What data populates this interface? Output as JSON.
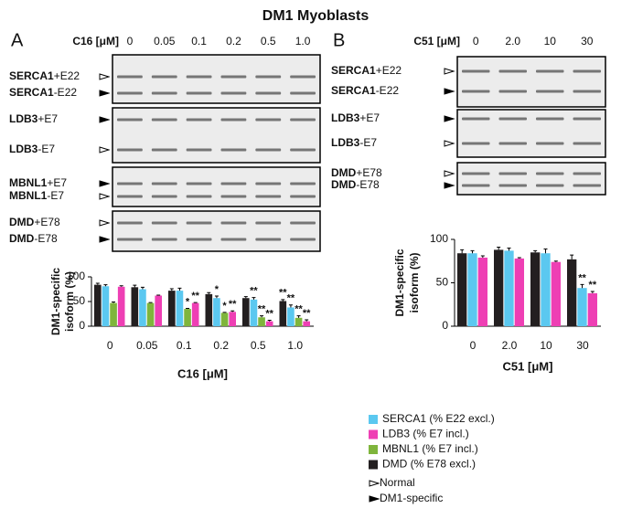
{
  "title": "DM1 Myoblasts",
  "gels": [
    {
      "label": "A",
      "condition": "C16 [μM]",
      "lanes": [
        "0",
        "0.05",
        "0.1",
        "0.2",
        "0.5",
        "1.0"
      ],
      "blocks": [
        [
          {
            "gene": "SERCA1",
            "exon": "+E22",
            "marker": "normal"
          },
          {
            "gene": "SERCA1",
            "exon": "-E22",
            "marker": "dm1"
          }
        ],
        [
          {
            "gene": "LDB3",
            "exon": "+E7",
            "marker": "dm1"
          },
          {
            "gene": "LDB3",
            "exon": "-E7",
            "marker": "normal"
          }
        ],
        [
          {
            "gene": "MBNL1",
            "exon": "+E7",
            "marker": "dm1"
          },
          {
            "gene": "MBNL1",
            "exon": "-E7",
            "marker": "normal"
          }
        ],
        [
          {
            "gene": "DMD",
            "exon": "+E78",
            "marker": "normal"
          },
          {
            "gene": "DMD",
            "exon": "-E78",
            "marker": "dm1"
          }
        ]
      ]
    },
    {
      "label": "B",
      "condition": "C51 [μM]",
      "lanes": [
        "0",
        "2.0",
        "10",
        "30"
      ],
      "blocks": [
        [
          {
            "gene": "SERCA1",
            "exon": "+E22",
            "marker": "normal"
          },
          {
            "gene": "SERCA1",
            "exon": "-E22",
            "marker": "dm1"
          }
        ],
        [
          {
            "gene": "LDB3",
            "exon": "+E7",
            "marker": "dm1"
          },
          {
            "gene": "LDB3",
            "exon": "-E7",
            "marker": "normal"
          }
        ],
        [
          {
            "gene": "DMD",
            "exon": "+E78",
            "marker": "normal"
          },
          {
            "gene": "DMD",
            "exon": "-E78",
            "marker": "dm1"
          }
        ]
      ]
    }
  ],
  "marker_key": [
    {
      "label": "Normal",
      "marker": "normal"
    },
    {
      "label": "DM1-specific",
      "marker": "dm1"
    }
  ],
  "chart_data": [
    {
      "type": "bar",
      "ylabel": [
        "DM1-specific",
        "isoform (%)"
      ],
      "xlabel": "C16 [μM]",
      "categories": [
        "0",
        "0.05",
        "0.1",
        "0.2",
        "0.5",
        "1.0"
      ],
      "ylim": [
        0,
        100
      ],
      "yticks": [
        0,
        50,
        100
      ],
      "grid": false,
      "series": [
        {
          "name": "SERCA1 (% E22 excl.)",
          "color": "#5bc8f0",
          "values": [
            81,
            75,
            72,
            57,
            54,
            38
          ],
          "errors": [
            3,
            4,
            5,
            4,
            4,
            5
          ],
          "stars": [
            null,
            null,
            null,
            "*",
            "**",
            "**"
          ]
        },
        {
          "name": "LDB3 (% E7 incl.)",
          "color": "#ee3fb4",
          "values": [
            80,
            62,
            47,
            29,
            10,
            10
          ],
          "errors": [
            2,
            1,
            1,
            2,
            2,
            3
          ],
          "stars": [
            null,
            null,
            "**",
            "**",
            "**",
            "**"
          ]
        },
        {
          "name": "MBNL1 (% E7 incl.)",
          "color": "#7fb53c",
          "values": [
            47,
            47,
            35,
            27,
            18,
            17
          ],
          "errors": [
            2,
            1,
            1,
            1,
            3,
            4
          ],
          "stars": [
            null,
            null,
            "*",
            "*",
            "**",
            "**"
          ]
        },
        {
          "name": "DMD (% E78 excl.)",
          "color": "#231f20",
          "values": [
            84,
            79,
            72,
            65,
            57,
            51
          ],
          "errors": [
            3,
            4,
            4,
            3,
            3,
            3
          ],
          "stars": [
            null,
            null,
            null,
            null,
            null,
            "**"
          ]
        }
      ]
    },
    {
      "type": "bar",
      "ylabel": [
        "DM1-specific",
        "isoform (%)"
      ],
      "xlabel": "C51 [μM]",
      "categories": [
        "0",
        "2.0",
        "10",
        "30"
      ],
      "ylim": [
        0,
        100
      ],
      "yticks": [
        0,
        50,
        100
      ],
      "grid": false,
      "series": [
        {
          "name": "SERCA1 (% E22 excl.)",
          "color": "#5bc8f0",
          "values": [
            84,
            87,
            84,
            44
          ],
          "errors": [
            3,
            3,
            5,
            4
          ],
          "stars": [
            null,
            null,
            null,
            "**"
          ]
        },
        {
          "name": "LDB3 (% E7 incl.)",
          "color": "#ee3fb4",
          "values": [
            79,
            78,
            74,
            38
          ],
          "errors": [
            2,
            1,
            1,
            2
          ],
          "stars": [
            null,
            null,
            null,
            "**"
          ]
        },
        {
          "name": "DMD (% E78 excl.)",
          "color": "#231f20",
          "values": [
            84,
            88,
            85,
            77
          ],
          "errors": [
            4,
            3,
            2,
            5
          ],
          "stars": [
            null,
            null,
            null,
            null
          ]
        }
      ]
    }
  ]
}
